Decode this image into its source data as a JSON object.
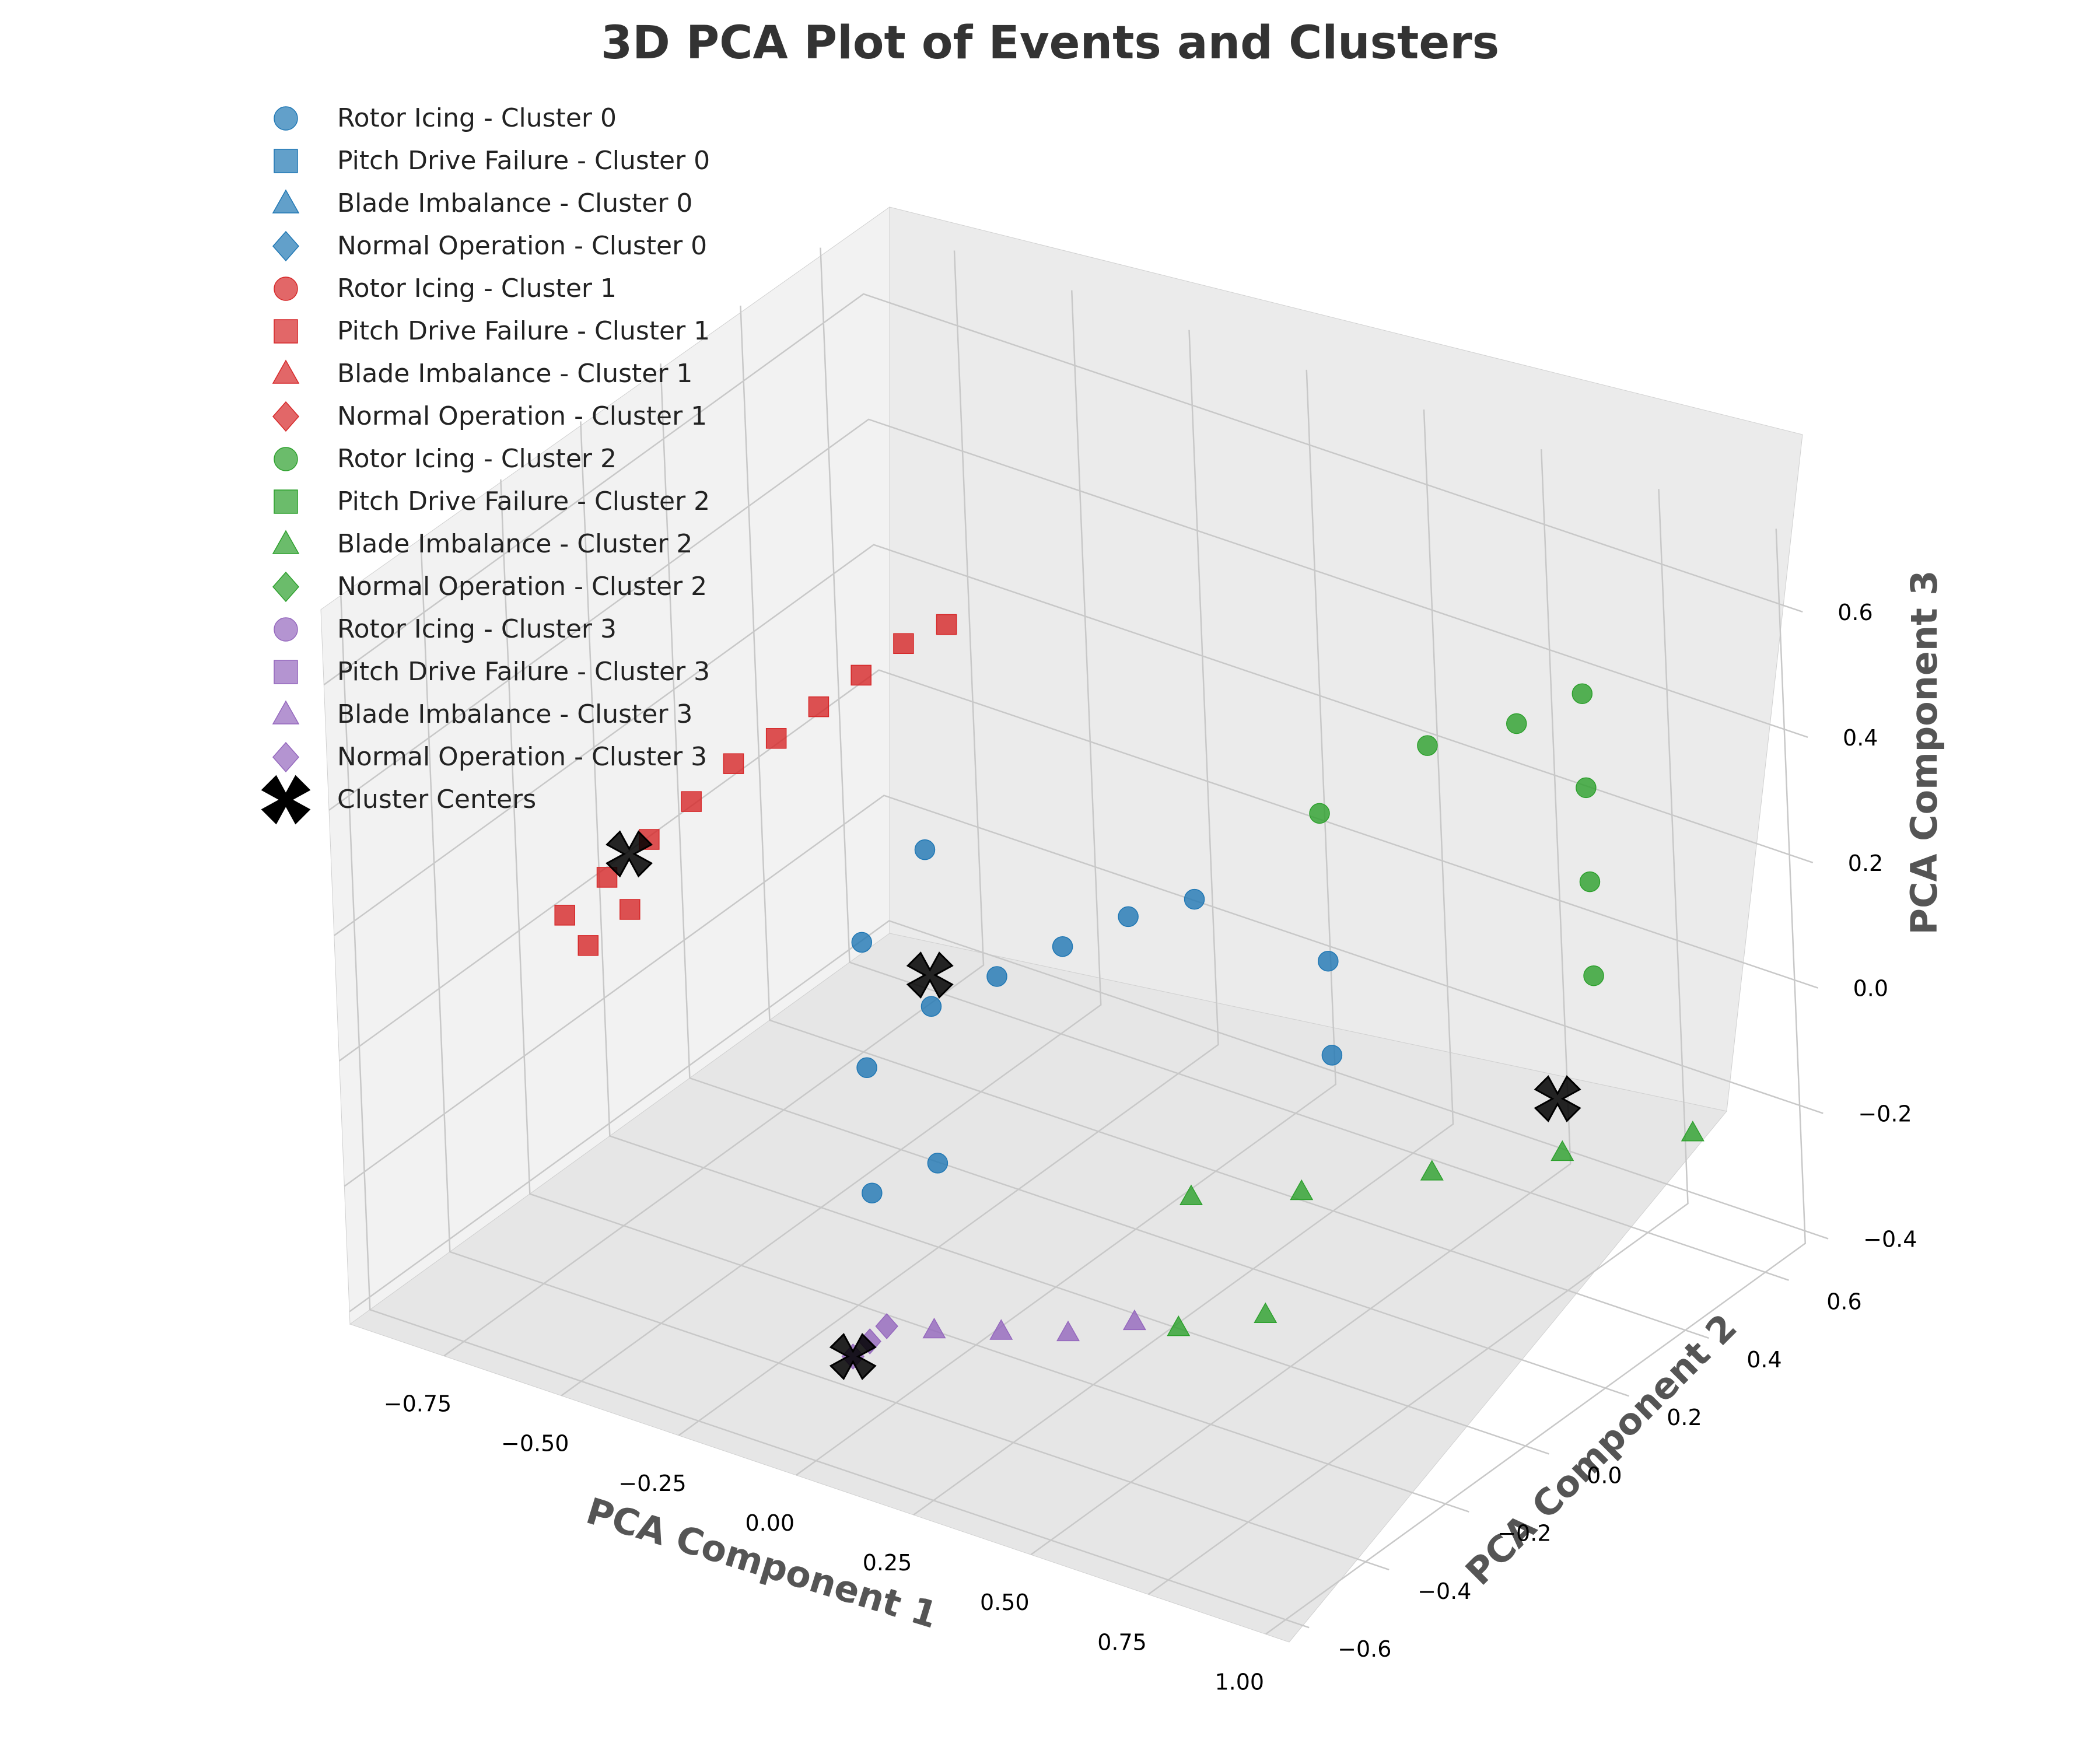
{
  "chart_data": {
    "type": "scatter",
    "title": "3D PCA Plot of Events and Clusters",
    "xlabel": "PCA Component 1",
    "ylabel": "PCA Component 2",
    "zlabel": "PCA Component 3",
    "xticks": [
      "−0.75",
      "−0.50",
      "−0.25",
      "0.00",
      "0.25",
      "0.50",
      "0.75",
      "1.00"
    ],
    "yticks": [
      "−0.6",
      "−0.4",
      "−0.2",
      "0.0",
      "0.2",
      "0.4",
      "0.6"
    ],
    "zticks": [
      "−0.4",
      "−0.2",
      "0.0",
      "0.2",
      "0.4",
      "0.6"
    ],
    "xlim": [
      -0.95,
      1.05
    ],
    "ylim": [
      -0.65,
      0.7
    ],
    "zlim": [
      -0.42,
      0.72
    ],
    "grid": true,
    "legend_position": "top-left",
    "colors": {
      "cluster_0": "#1f77b4",
      "cluster_1": "#d62728",
      "cluster_2": "#2ca02c",
      "cluster_3": "#9467bd",
      "centers": "#000000"
    },
    "legend": [
      {
        "label": "Rotor Icing - Cluster 0",
        "marker": "circle",
        "color": "#1f77b4"
      },
      {
        "label": "Pitch Drive Failure - Cluster 0",
        "marker": "square",
        "color": "#1f77b4"
      },
      {
        "label": "Blade Imbalance - Cluster 0",
        "marker": "triangle",
        "color": "#1f77b4"
      },
      {
        "label": "Normal Operation - Cluster 0",
        "marker": "diamond",
        "color": "#1f77b4"
      },
      {
        "label": "Rotor Icing - Cluster 1",
        "marker": "circle",
        "color": "#d62728"
      },
      {
        "label": "Pitch Drive Failure - Cluster 1",
        "marker": "square",
        "color": "#d62728"
      },
      {
        "label": "Blade Imbalance - Cluster 1",
        "marker": "triangle",
        "color": "#d62728"
      },
      {
        "label": "Normal Operation - Cluster 1",
        "marker": "diamond",
        "color": "#d62728"
      },
      {
        "label": "Rotor Icing - Cluster 2",
        "marker": "circle",
        "color": "#2ca02c"
      },
      {
        "label": "Pitch Drive Failure - Cluster 2",
        "marker": "square",
        "color": "#2ca02c"
      },
      {
        "label": "Blade Imbalance - Cluster 2",
        "marker": "triangle",
        "color": "#2ca02c"
      },
      {
        "label": "Normal Operation - Cluster 2",
        "marker": "diamond",
        "color": "#2ca02c"
      },
      {
        "label": "Rotor Icing - Cluster 3",
        "marker": "circle",
        "color": "#9467bd"
      },
      {
        "label": "Pitch Drive Failure - Cluster 3",
        "marker": "square",
        "color": "#9467bd"
      },
      {
        "label": "Blade Imbalance - Cluster 3",
        "marker": "triangle",
        "color": "#9467bd"
      },
      {
        "label": "Normal Operation - Cluster 3",
        "marker": "diamond",
        "color": "#9467bd"
      },
      {
        "label": "Cluster Centers",
        "marker": "x",
        "color": "#000000"
      }
    ],
    "series": [
      {
        "name": "Pitch Drive Failure - Cluster 1",
        "marker": "square",
        "color": "#d62728",
        "points": [
          [
            -0.85,
            -0.2,
            0.05
          ],
          [
            -0.8,
            -0.15,
            0.1
          ],
          [
            -0.75,
            -0.1,
            0.15
          ],
          [
            -0.7,
            -0.05,
            0.2
          ],
          [
            -0.65,
            0.0,
            0.25
          ],
          [
            -0.6,
            0.05,
            0.28
          ],
          [
            -0.55,
            0.1,
            0.32
          ],
          [
            -0.5,
            0.15,
            0.36
          ],
          [
            -0.45,
            0.2,
            0.4
          ],
          [
            -0.4,
            0.25,
            0.42
          ],
          [
            -0.82,
            -0.18,
            0.0
          ],
          [
            -0.78,
            -0.12,
            0.04
          ]
        ]
      },
      {
        "name": "Rotor Icing - Cluster 0",
        "marker": "circle",
        "color": "#1f77b4",
        "points": [
          [
            -0.3,
            -0.1,
            -0.3
          ],
          [
            -0.3,
            -0.1,
            -0.1
          ],
          [
            -0.3,
            -0.1,
            0.1
          ],
          [
            -0.2,
            -0.05,
            -0.25
          ],
          [
            -0.2,
            -0.05,
            0.0
          ],
          [
            -0.2,
            -0.05,
            0.25
          ],
          [
            -0.1,
            0.0,
            0.05
          ],
          [
            0.0,
            0.05,
            0.1
          ],
          [
            0.1,
            0.1,
            0.15
          ],
          [
            0.2,
            0.15,
            0.18
          ],
          [
            0.35,
            0.3,
            -0.1
          ],
          [
            0.35,
            0.3,
            0.05
          ]
        ]
      },
      {
        "name": "Rotor Icing - Cluster 2",
        "marker": "circle",
        "color": "#2ca02c",
        "points": [
          [
            0.7,
            0.55,
            0.0
          ],
          [
            0.7,
            0.55,
            0.15
          ],
          [
            0.7,
            0.55,
            0.3
          ],
          [
            0.7,
            0.55,
            0.45
          ],
          [
            0.6,
            0.5,
            0.4
          ],
          [
            0.45,
            0.45,
            0.35
          ],
          [
            0.3,
            0.35,
            0.25
          ]
        ]
      },
      {
        "name": "Blade Imbalance - Cluster 2",
        "marker": "triangle",
        "color": "#2ca02c",
        "points": [
          [
            0.3,
            0.0,
            -0.2
          ],
          [
            0.45,
            0.1,
            -0.2
          ],
          [
            0.6,
            0.25,
            -0.2
          ],
          [
            0.75,
            0.4,
            -0.2
          ],
          [
            0.9,
            0.55,
            -0.2
          ],
          [
            0.35,
            -0.1,
            -0.35
          ],
          [
            0.45,
            0.0,
            -0.35
          ]
        ]
      },
      {
        "name": "Blade Imbalance - Cluster 3",
        "marker": "triangle",
        "color": "#9467bd",
        "points": [
          [
            0.0,
            -0.3,
            -0.35
          ],
          [
            0.1,
            -0.25,
            -0.35
          ],
          [
            0.2,
            -0.2,
            -0.35
          ],
          [
            0.3,
            -0.15,
            -0.33
          ]
        ]
      },
      {
        "name": "Normal Operation - Cluster 3",
        "marker": "diamond",
        "color": "#9467bd",
        "points": [
          [
            0.0,
            -0.5,
            -0.3
          ],
          [
            0.02,
            -0.48,
            -0.28
          ],
          [
            0.04,
            -0.46,
            -0.26
          ]
        ]
      },
      {
        "name": "Cluster Centers",
        "marker": "x",
        "color": "#000000",
        "points": [
          [
            -0.75,
            -0.15,
            0.15
          ],
          [
            -0.2,
            -0.05,
            0.05
          ],
          [
            0.7,
            0.45,
            -0.15
          ],
          [
            0.0,
            -0.5,
            -0.3
          ]
        ]
      }
    ]
  }
}
